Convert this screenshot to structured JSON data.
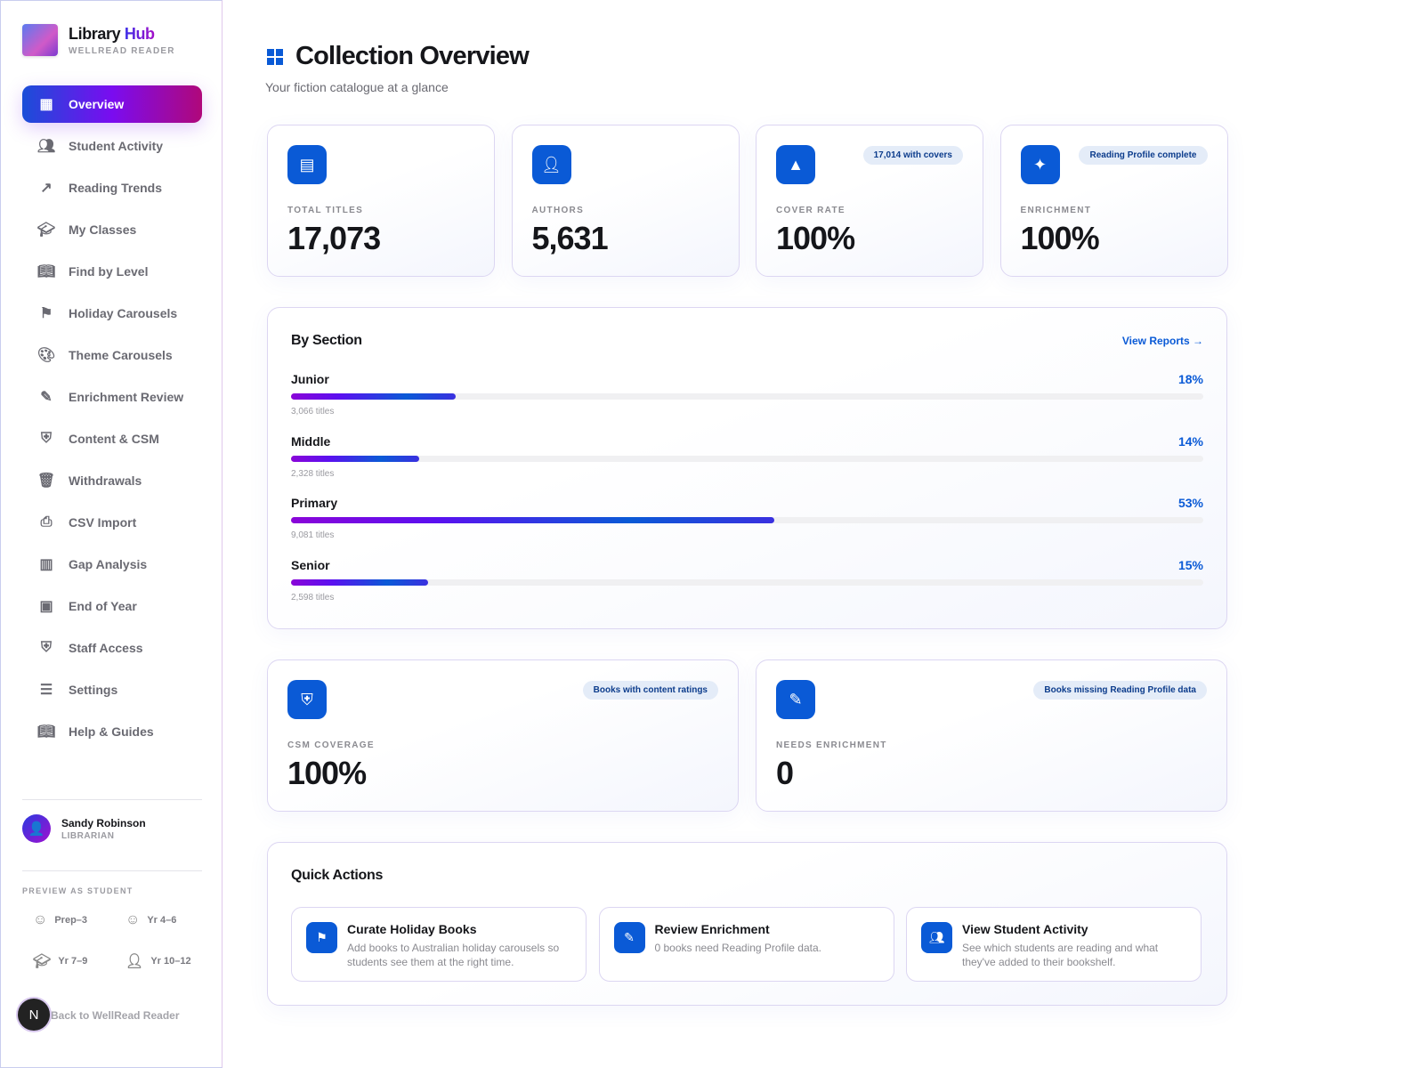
{
  "brand": {
    "name": "Library",
    "name_accent": "Hub",
    "subtitle": "WELLREAD READER"
  },
  "nav": [
    {
      "label": "Overview",
      "icon": "dashboard-icon",
      "active": true
    },
    {
      "label": "Student Activity",
      "icon": "people-icon"
    },
    {
      "label": "Reading Trends",
      "icon": "trending-up-icon"
    },
    {
      "label": "My Classes",
      "icon": "graduation-cap-icon"
    },
    {
      "label": "Find by Level",
      "icon": "open-book-icon"
    },
    {
      "label": "Holiday Carousels",
      "icon": "flag-icon"
    },
    {
      "label": "Theme Carousels",
      "icon": "palette-icon"
    },
    {
      "label": "Enrichment Review",
      "icon": "edit-list-icon"
    },
    {
      "label": "Content & CSM",
      "icon": "shield-icon"
    },
    {
      "label": "Withdrawals",
      "icon": "delete-list-icon"
    },
    {
      "label": "CSV Import",
      "icon": "file-upload-icon"
    },
    {
      "label": "Gap Analysis",
      "icon": "analytics-icon"
    },
    {
      "label": "End of Year",
      "icon": "calendar-icon"
    },
    {
      "label": "Staff Access",
      "icon": "shield-user-icon"
    },
    {
      "label": "Settings",
      "icon": "sliders-icon"
    },
    {
      "label": "Help & Guides",
      "icon": "book-icon"
    }
  ],
  "user": {
    "name": "Sandy Robinson",
    "role": "LIBRARIAN"
  },
  "preview": {
    "label": "PREVIEW AS STUDENT",
    "options": [
      {
        "label": "Prep–3",
        "icon": "smiley-icon"
      },
      {
        "label": "Yr 4–6",
        "icon": "child-face-icon"
      },
      {
        "label": "Yr 7–9",
        "icon": "graduation-cap-icon"
      },
      {
        "label": "Yr 10–12",
        "icon": "person-icon"
      }
    ]
  },
  "back_link": "Back to WellRead Reader",
  "dev_badge": "N",
  "header": {
    "title": "Collection Overview",
    "subtitle": "Your fiction catalogue at a glance"
  },
  "stats": [
    {
      "label": "TOTAL TITLES",
      "value": "17,073",
      "icon": "library-books-icon",
      "badge": ""
    },
    {
      "label": "AUTHORS",
      "value": "5,631",
      "icon": "person-icon",
      "badge": ""
    },
    {
      "label": "COVER RATE",
      "value": "100%",
      "icon": "image-icon",
      "badge": "17,014 with covers"
    },
    {
      "label": "ENRICHMENT",
      "value": "100%",
      "icon": "sparkle-icon",
      "badge": "Reading Profile complete"
    }
  ],
  "by_section": {
    "title": "By Section",
    "link": "View Reports →",
    "rows": [
      {
        "name": "Junior",
        "percent": 18,
        "percent_label": "18%",
        "count": "3,066 titles"
      },
      {
        "name": "Middle",
        "percent": 14,
        "percent_label": "14%",
        "count": "2,328 titles"
      },
      {
        "name": "Primary",
        "percent": 53,
        "percent_label": "53%",
        "count": "9,081 titles"
      },
      {
        "name": "Senior",
        "percent": 15,
        "percent_label": "15%",
        "count": "2,598 titles"
      }
    ]
  },
  "coverage": [
    {
      "label": "CSM COVERAGE",
      "value": "100%",
      "icon": "shield-icon",
      "badge": "Books with content ratings"
    },
    {
      "label": "NEEDS ENRICHMENT",
      "value": "0",
      "icon": "edit-list-icon",
      "badge": "Books missing Reading Profile data"
    }
  ],
  "quick_actions": {
    "title": "Quick Actions",
    "items": [
      {
        "title": "Curate Holiday Books",
        "desc": "Add books to Australian holiday carousels so students see them at the right time.",
        "icon": "flag-icon"
      },
      {
        "title": "Review Enrichment",
        "desc": "0 books need Reading Profile data.",
        "icon": "edit-list-icon"
      },
      {
        "title": "View Student Activity",
        "desc": "See which students are reading and what they've added to their bookshelf.",
        "icon": "people-icon"
      }
    ]
  },
  "colors": {
    "accent": "#0a5ad6",
    "gradient_start": "#1a4ed8",
    "gradient_mid": "#7a0cf0",
    "gradient_end": "#b0087a"
  }
}
